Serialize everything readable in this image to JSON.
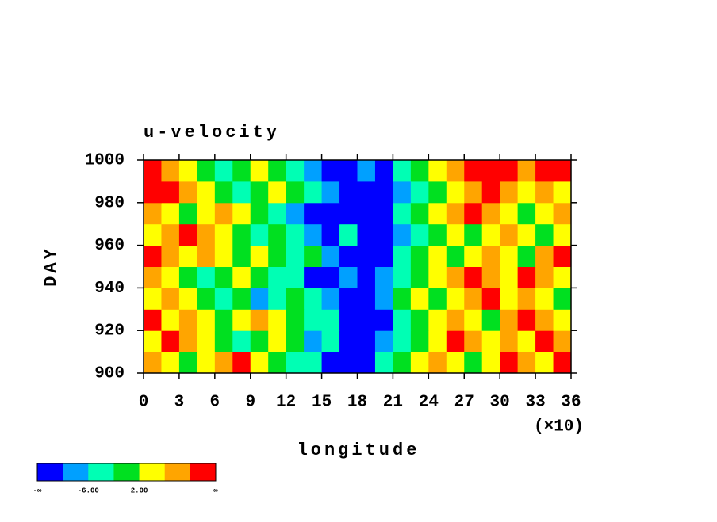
{
  "chart_data": {
    "type": "heatmap",
    "title": "u-velocity",
    "xlabel": "longitude",
    "ylabel": "DAY",
    "x_scale_label": "(×10)",
    "xlim": [
      0,
      36
    ],
    "xticks": [
      0,
      3,
      6,
      9,
      12,
      15,
      18,
      21,
      24,
      27,
      30,
      33,
      36
    ],
    "ylim": [
      900,
      1000
    ],
    "yticks": [
      900,
      920,
      940,
      960,
      980,
      1000
    ],
    "x": [
      0.75,
      2.25,
      3.75,
      5.25,
      6.75,
      8.25,
      9.75,
      11.25,
      12.75,
      14.25,
      15.75,
      17.25,
      18.75,
      20.25,
      21.75,
      23.25,
      24.75,
      26.25,
      27.75,
      29.25,
      30.75,
      32.25,
      33.75,
      35.25
    ],
    "y": [
      905,
      915,
      925,
      935,
      945,
      955,
      965,
      975,
      985,
      995
    ],
    "z": [
      [
        8,
        4,
        0,
        4,
        8,
        12,
        4,
        0,
        -4,
        -4,
        -12,
        -12,
        -12,
        -4,
        0,
        4,
        8,
        4,
        0,
        4,
        12,
        8,
        4,
        12
      ],
      [
        4,
        12,
        8,
        4,
        0,
        -4,
        0,
        4,
        0,
        -8,
        -4,
        -12,
        -12,
        -8,
        -4,
        0,
        4,
        12,
        8,
        4,
        8,
        4,
        12,
        8
      ],
      [
        12,
        4,
        8,
        4,
        0,
        4,
        8,
        4,
        0,
        -4,
        -4,
        -12,
        -12,
        -12,
        -4,
        0,
        4,
        8,
        4,
        0,
        8,
        12,
        8,
        4
      ],
      [
        4,
        8,
        4,
        0,
        -4,
        0,
        -8,
        -4,
        0,
        -4,
        -8,
        -12,
        -12,
        -8,
        0,
        4,
        0,
        4,
        8,
        12,
        4,
        8,
        4,
        0
      ],
      [
        8,
        4,
        0,
        -4,
        0,
        4,
        0,
        -4,
        -4,
        -12,
        -12,
        -8,
        -12,
        -8,
        -4,
        0,
        4,
        8,
        12,
        8,
        4,
        12,
        8,
        4
      ],
      [
        12,
        8,
        4,
        8,
        4,
        0,
        4,
        0,
        -4,
        0,
        -8,
        -12,
        -12,
        -12,
        -4,
        0,
        4,
        0,
        4,
        8,
        4,
        0,
        8,
        12
      ],
      [
        4,
        8,
        12,
        8,
        4,
        0,
        -4,
        0,
        -4,
        -8,
        -12,
        -4,
        -12,
        -12,
        -8,
        -4,
        0,
        4,
        0,
        4,
        8,
        4,
        0,
        4
      ],
      [
        8,
        4,
        0,
        4,
        8,
        4,
        0,
        -4,
        -8,
        -12,
        -12,
        -12,
        -12,
        -12,
        -4,
        0,
        4,
        8,
        12,
        8,
        4,
        0,
        4,
        8
      ],
      [
        12,
        12,
        8,
        4,
        0,
        -4,
        0,
        4,
        0,
        -4,
        -8,
        -12,
        -12,
        -12,
        -8,
        -4,
        0,
        4,
        8,
        12,
        8,
        4,
        8,
        4
      ],
      [
        12,
        8,
        4,
        0,
        -4,
        0,
        4,
        0,
        -4,
        -8,
        -12,
        -12,
        -8,
        -12,
        -4,
        0,
        4,
        8,
        12,
        12,
        12,
        8,
        12,
        12
      ]
    ],
    "levels": [
      -10,
      -6,
      -2,
      2,
      6,
      10
    ],
    "colorbar": {
      "colors": [
        "#0000ff",
        "#00a0ff",
        "#00ffb4",
        "#00e020",
        "#ffff00",
        "#ffa500",
        "#ff0000"
      ],
      "labels": [
        "-∞",
        null,
        "-6.00",
        null,
        "2.00",
        null,
        null,
        "∞"
      ]
    }
  }
}
